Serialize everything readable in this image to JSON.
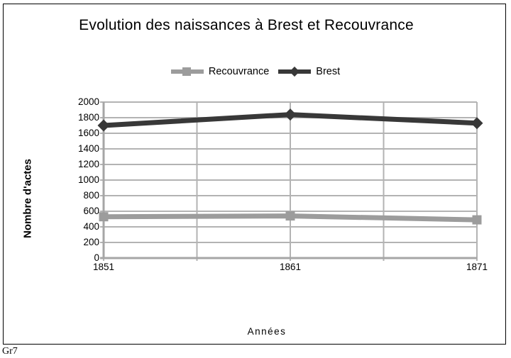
{
  "chart_data": {
    "type": "line",
    "title": "Evolution des naissances à Brest et Recouvrance",
    "xlabel": "Années",
    "ylabel": "Nombre d'actes",
    "categories": [
      "1851",
      "1861",
      "1871"
    ],
    "series": [
      {
        "name": "Recouvrance",
        "values": [
          530,
          540,
          490
        ],
        "color": "#9c9c9c",
        "marker": "square"
      },
      {
        "name": "Brest",
        "values": [
          1700,
          1840,
          1730
        ],
        "color": "#383838",
        "marker": "diamond"
      }
    ],
    "ylim": [
      0,
      2000
    ],
    "ytick_step": 200,
    "yticks": [
      "2000",
      "1800",
      "1600",
      "1400",
      "1200",
      "1000",
      "800",
      "600",
      "400",
      "200",
      "0"
    ],
    "grid": true,
    "legend_position": "top-center",
    "colors": {
      "gridline": "#b3b3b3",
      "axis": "#a6a6a6",
      "frame_border": "#000000"
    }
  },
  "caption": "Gr7"
}
